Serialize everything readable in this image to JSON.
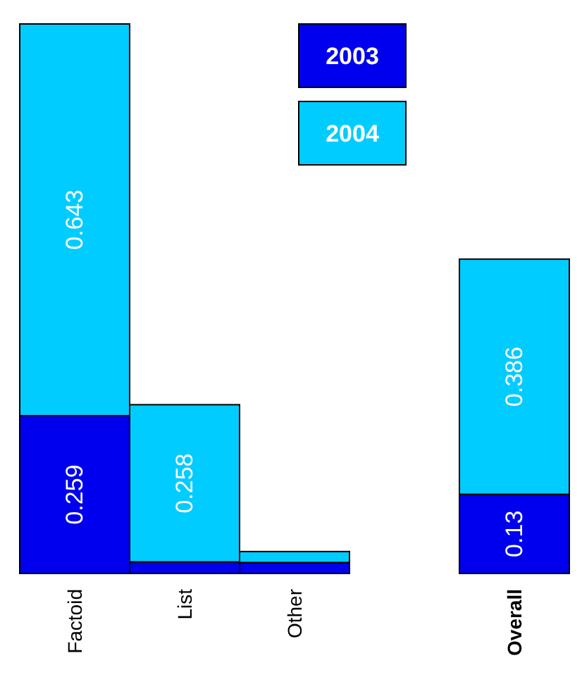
{
  "chart_data": {
    "type": "bar",
    "stacked": true,
    "categories": [
      "Factoid",
      "List",
      "Other",
      null,
      "Overall"
    ],
    "legend": "top",
    "series": [
      {
        "name": "2003",
        "color": "#0000ee",
        "values": [
          0.259,
          0.019,
          0.018,
          null,
          0.13
        ],
        "value_labels": [
          "0.259",
          null,
          null,
          null,
          "0.13"
        ]
      },
      {
        "name": "2004",
        "color": "#00ccff",
        "values": [
          0.643,
          0.258,
          0.018,
          null,
          0.386
        ],
        "value_labels": [
          "0.643",
          "0.258",
          null,
          null,
          "0.386"
        ]
      }
    ]
  }
}
